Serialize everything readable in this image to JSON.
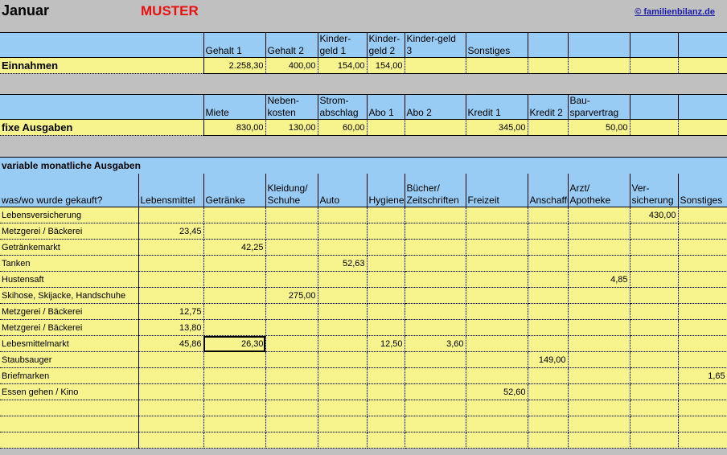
{
  "header": {
    "month": "Januar",
    "watermark": "MUSTER",
    "link": "© familienbilanz.de"
  },
  "income": {
    "label": "Einnahmen",
    "columns": [
      "Gehalt 1",
      "Gehalt 2",
      "Kinder-geld 1",
      "Kinder-geld 2",
      "Kinder-geld 3",
      "Sonstiges",
      "",
      "",
      "",
      ""
    ],
    "values": [
      "2.258,30",
      "400,00",
      "154,00",
      "154,00",
      "",
      "",
      "",
      "",
      "",
      ""
    ]
  },
  "fixed": {
    "label": "fixe Ausgaben",
    "columns": [
      "Miete",
      "Neben-kosten",
      "Strom-abschlag",
      "Abo 1",
      "Abo 2",
      "Kredit 1",
      "Kredit 2",
      "Bau-sparvertrag",
      "",
      ""
    ],
    "values": [
      "830,00",
      "130,00",
      "60,00",
      "",
      "",
      "345,00",
      "",
      "50,00",
      "",
      ""
    ]
  },
  "variable": {
    "title": "variable monatliche Ausgaben",
    "columns": [
      "was/wo wurde gekauft?",
      "Lebensmittel",
      "Getränke",
      "Kleidung/ Schuhe",
      "Auto",
      "Hygiene",
      "Bücher/ Zeitschriften",
      "Freizeit",
      "Anschaffungen",
      "Arzt/ Apotheke",
      "Ver-sicherung",
      "Sonstiges"
    ],
    "rows": [
      [
        "Lebensversicherung",
        "",
        "",
        "",
        "",
        "",
        "",
        "",
        "",
        "",
        "430,00",
        ""
      ],
      [
        "Metzgerei / Bäckerei",
        "23,45",
        "",
        "",
        "",
        "",
        "",
        "",
        "",
        "",
        "",
        ""
      ],
      [
        "Getränkemarkt",
        "",
        "42,25",
        "",
        "",
        "",
        "",
        "",
        "",
        "",
        "",
        ""
      ],
      [
        "Tanken",
        "",
        "",
        "",
        "52,63",
        "",
        "",
        "",
        "",
        "",
        "",
        ""
      ],
      [
        "Hustensaft",
        "",
        "",
        "",
        "",
        "",
        "",
        "",
        "",
        "4,85",
        "",
        ""
      ],
      [
        "Skihose, Skijacke, Handschuhe",
        "",
        "",
        "275,00",
        "",
        "",
        "",
        "",
        "",
        "",
        "",
        ""
      ],
      [
        "Metzgerei / Bäckerei",
        "12,75",
        "",
        "",
        "",
        "",
        "",
        "",
        "",
        "",
        "",
        ""
      ],
      [
        "Metzgerei / Bäckerei",
        "13,80",
        "",
        "",
        "",
        "",
        "",
        "",
        "",
        "",
        "",
        ""
      ],
      [
        "Lebesmittelmarkt",
        "45,86",
        "26,30",
        "",
        "",
        "12,50",
        "3,60",
        "",
        "",
        "",
        "",
        ""
      ],
      [
        "Staubsauger",
        "",
        "",
        "",
        "",
        "",
        "",
        "",
        "149,00",
        "",
        "",
        ""
      ],
      [
        "Briefmarken",
        "",
        "",
        "",
        "",
        "",
        "",
        "",
        "",
        "",
        "",
        "1,65"
      ],
      [
        "Essen gehen / Kino",
        "",
        "",
        "",
        "",
        "",
        "",
        "52,60",
        "",
        "",
        "",
        ""
      ],
      [
        "",
        "",
        "",
        "",
        "",
        "",
        "",
        "",
        "",
        "",
        "",
        ""
      ],
      [
        "",
        "",
        "",
        "",
        "",
        "",
        "",
        "",
        "",
        "",
        "",
        ""
      ],
      [
        "",
        "",
        "",
        "",
        "",
        "",
        "",
        "",
        "",
        "",
        "",
        ""
      ]
    ],
    "selected_cell": "Lebesmittelmarkt / Getränke"
  }
}
